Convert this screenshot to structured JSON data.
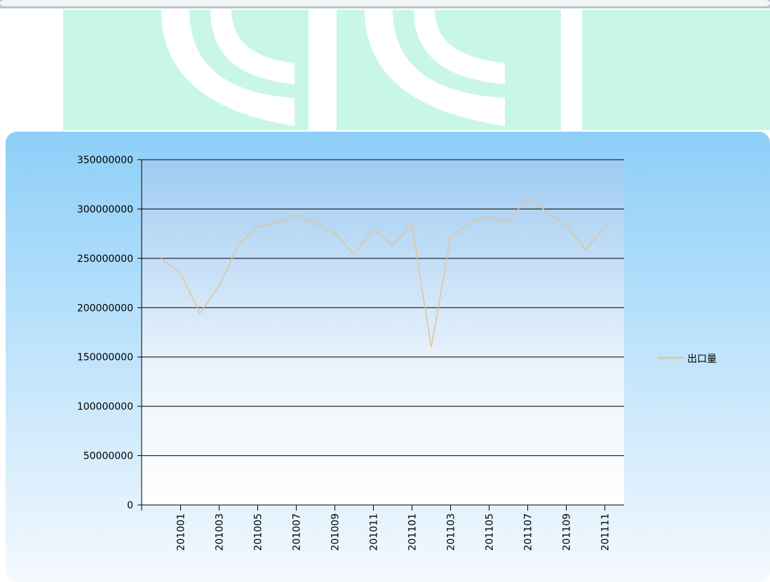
{
  "chart_data": {
    "type": "line",
    "categories": [
      null,
      "201001",
      null,
      "201003",
      null,
      "201005",
      null,
      "201007",
      null,
      "201009",
      null,
      "201011",
      null,
      "201101",
      null,
      "201103",
      null,
      "201105",
      null,
      "201107",
      null,
      "201109",
      null,
      "201111"
    ],
    "series": [
      {
        "name": "出口量",
        "color": "#e2c393",
        "values": [
          250000000,
          235000000,
          194500000,
          222000000,
          264000000,
          282000000,
          286000000,
          294000000,
          286000000,
          275000000,
          254000000,
          280000000,
          263000000,
          284000000,
          160000000,
          271000000,
          286000000,
          292000000,
          287000000,
          312000000,
          297000000,
          283000000,
          259000000,
          282000000
        ]
      }
    ],
    "ylim": [
      0,
      350000000
    ],
    "yticks": [
      0,
      50000000,
      100000000,
      150000000,
      200000000,
      250000000,
      300000000,
      350000000
    ],
    "grid": true,
    "legend": "right"
  }
}
